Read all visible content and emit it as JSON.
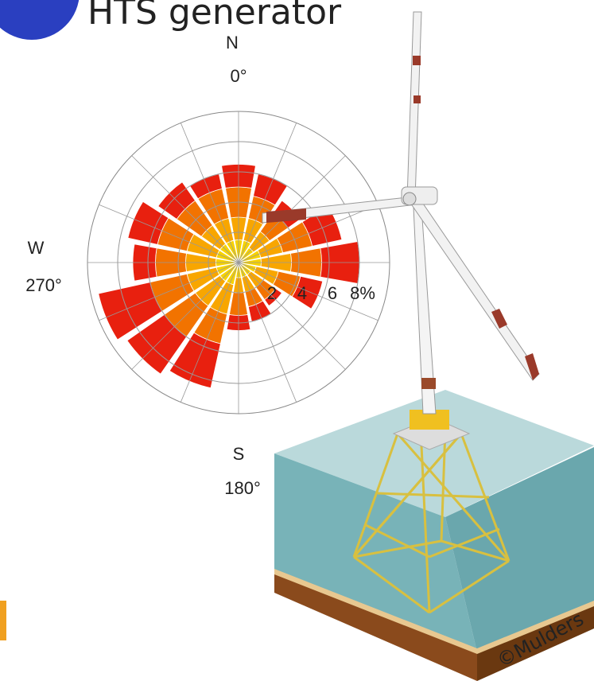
{
  "header": {
    "title": "HTS generator"
  },
  "credit": "©Mulders",
  "chart_data": {
    "type": "windrose",
    "angles": [
      0,
      22.5,
      45,
      67.5,
      90,
      112.5,
      135,
      157.5,
      180,
      202.5,
      225,
      247.5,
      270,
      292.5,
      315,
      337.5
    ],
    "series": [
      {
        "color": "#f6d200",
        "values": [
          1.5,
          1.5,
          1.2,
          1.5,
          1.5,
          1.2,
          1,
          1,
          1,
          1.5,
          1.5,
          1.5,
          1.5,
          1.5,
          1.5,
          1.5
        ]
      },
      {
        "color": "#f8a600",
        "values": [
          1.5,
          1.5,
          1.3,
          1.5,
          2,
          1.5,
          1,
          1,
          1,
          2,
          2,
          2,
          2,
          2,
          1.5,
          1.5
        ]
      },
      {
        "color": "#f27300",
        "values": [
          2,
          1.5,
          1.5,
          2,
          2,
          1.5,
          1,
          1,
          1.5,
          2,
          2.5,
          2.5,
          2,
          2,
          2,
          2
        ]
      },
      {
        "color": "#e8200f",
        "values": [
          1.5,
          1.5,
          1,
          2,
          2.5,
          1.5,
          0.5,
          1,
          1,
          3,
          3,
          3.5,
          1.5,
          2,
          1.5,
          1
        ]
      }
    ],
    "rlim": [
      0,
      10
    ],
    "rticks": [
      2,
      4,
      6,
      {
        "value": 8,
        "label": "8%"
      }
    ],
    "direction_labels": [
      {
        "name": "N",
        "angle": "0°"
      },
      {
        "name": "W",
        "angle": "270°"
      },
      {
        "name": "S",
        "angle": "180°"
      }
    ]
  }
}
